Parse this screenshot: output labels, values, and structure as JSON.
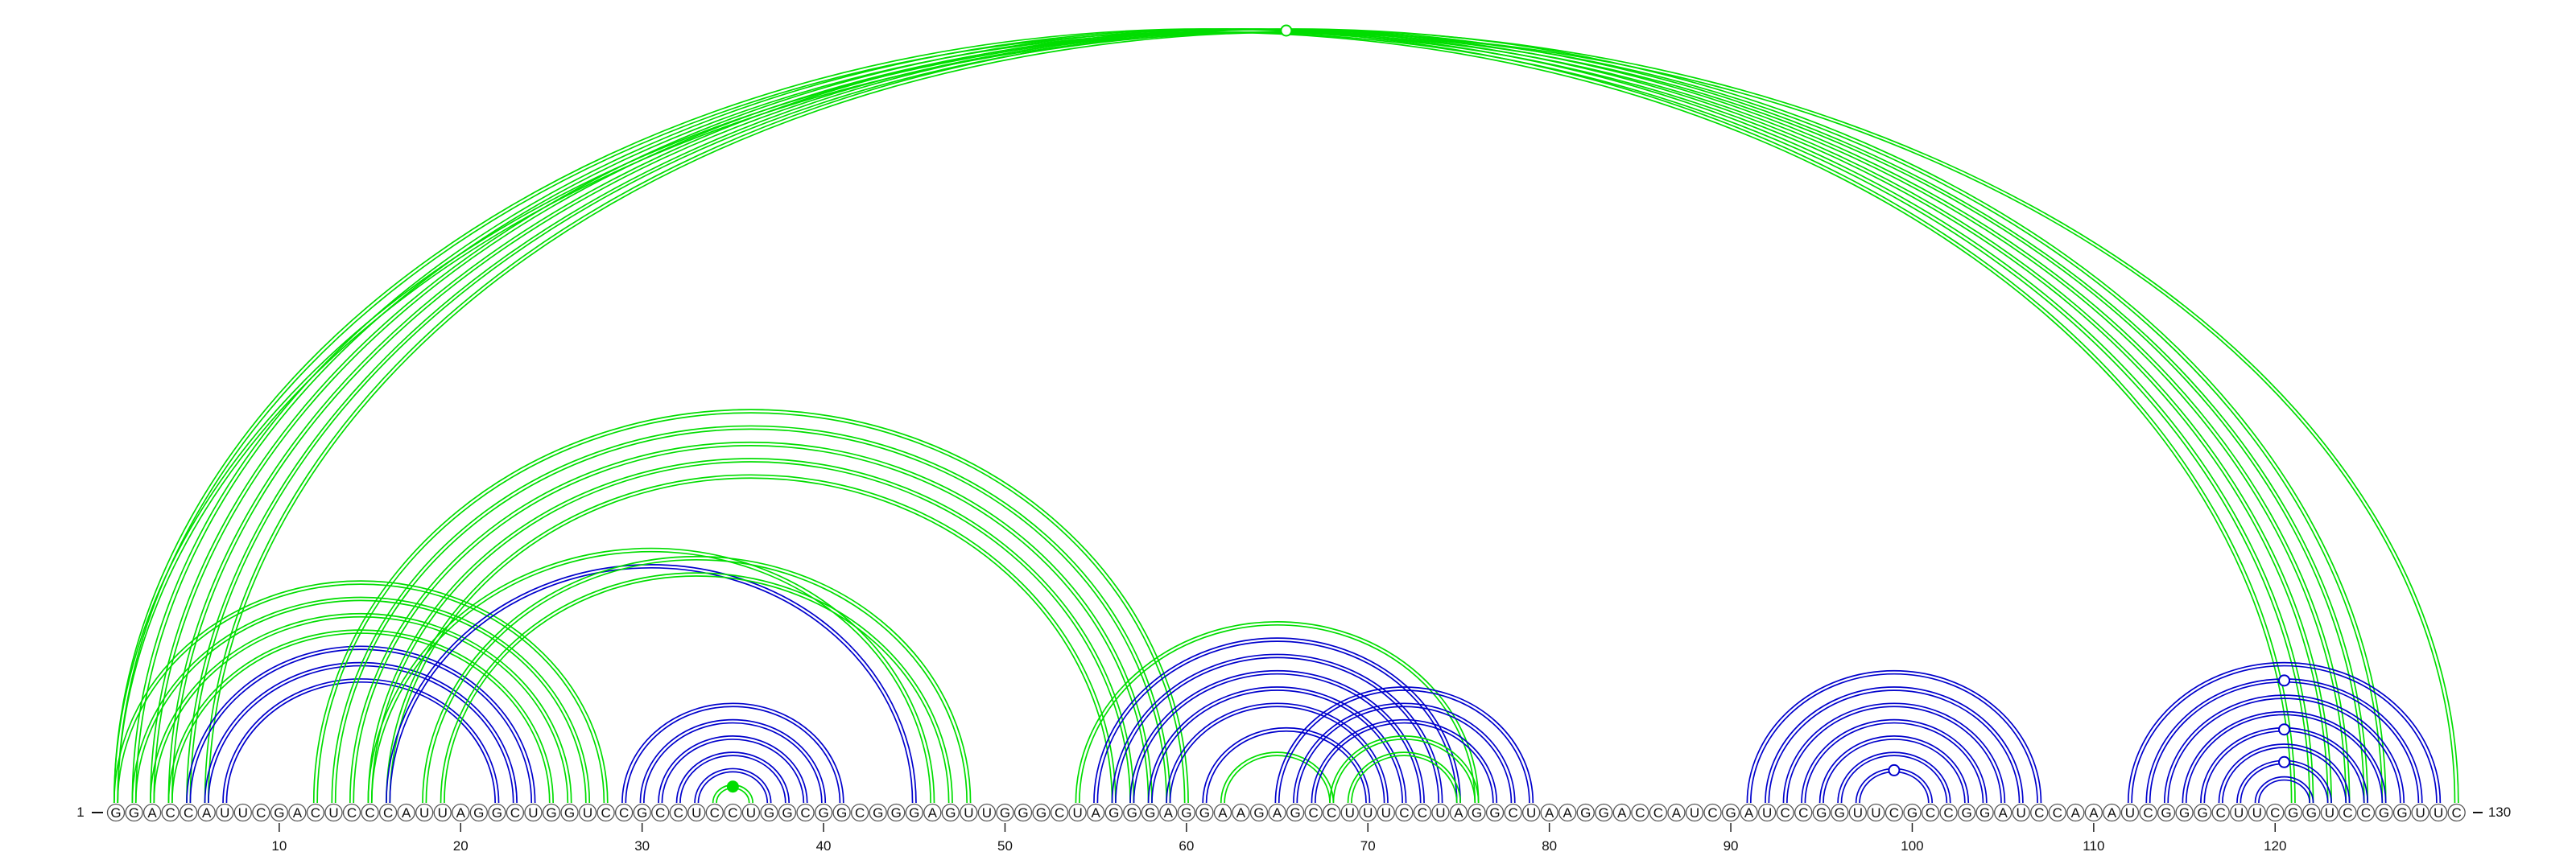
{
  "sequence": "GGACCAUUCGACUCCCAUUAGGCUGGUCCGCCUCCUGGCGGCGGGAGUUGGGCUAGGGAGGAAGAGCCUUUCCUAGGCUAAGGACCAUCGAUCCGGUUCGCCGGAUCCAAAUCGGGCUUCGGUCCGGUUC",
  "start_label": "1",
  "end_label": "130",
  "tick_labels": [
    "10",
    "20",
    "30",
    "40",
    "50",
    "60",
    "70",
    "80",
    "90",
    "100",
    "110",
    "120"
  ],
  "colors": {
    "blue": "#0000cc",
    "green": "#00dd00"
  },
  "arcs": [
    {
      "i": 1,
      "j": 121,
      "color": "green"
    },
    {
      "i": 2,
      "j": 122,
      "color": "green"
    },
    {
      "i": 3,
      "j": 123,
      "color": "green"
    },
    {
      "i": 4,
      "j": 124,
      "color": "green"
    },
    {
      "i": 5,
      "j": 125,
      "color": "green"
    },
    {
      "i": 6,
      "j": 126,
      "color": "green"
    },
    {
      "i": 1,
      "j": 130,
      "color": "green"
    },
    {
      "i": 1,
      "j": 28,
      "color": "green"
    },
    {
      "i": 2,
      "j": 27,
      "color": "green"
    },
    {
      "i": 3,
      "j": 26,
      "color": "green"
    },
    {
      "i": 4,
      "j": 25,
      "color": "green"
    },
    {
      "i": 5,
      "j": 24,
      "color": "blue"
    },
    {
      "i": 6,
      "j": 23,
      "color": "blue"
    },
    {
      "i": 7,
      "j": 22,
      "color": "blue"
    },
    {
      "i": 12,
      "j": 60,
      "color": "green"
    },
    {
      "i": 13,
      "j": 59,
      "color": "green"
    },
    {
      "i": 14,
      "j": 58,
      "color": "green"
    },
    {
      "i": 15,
      "j": 57,
      "color": "green"
    },
    {
      "i": 16,
      "j": 56,
      "color": "green"
    },
    {
      "i": 15,
      "j": 46,
      "color": "green"
    },
    {
      "i": 16,
      "j": 45,
      "color": "blue"
    },
    {
      "i": 18,
      "j": 48,
      "color": "green"
    },
    {
      "i": 19,
      "j": 47,
      "color": "green"
    },
    {
      "i": 29,
      "j": 41,
      "color": "blue"
    },
    {
      "i": 30,
      "j": 40,
      "color": "blue"
    },
    {
      "i": 31,
      "j": 39,
      "color": "blue"
    },
    {
      "i": 32,
      "j": 38,
      "color": "blue"
    },
    {
      "i": 33,
      "j": 37,
      "color": "blue"
    },
    {
      "i": 34,
      "j": 36,
      "color": "green"
    },
    {
      "i": 54,
      "j": 76,
      "color": "green"
    },
    {
      "i": 55,
      "j": 75,
      "color": "blue"
    },
    {
      "i": 56,
      "j": 74,
      "color": "blue"
    },
    {
      "i": 57,
      "j": 73,
      "color": "blue"
    },
    {
      "i": 58,
      "j": 72,
      "color": "blue"
    },
    {
      "i": 59,
      "j": 71,
      "color": "blue"
    },
    {
      "i": 61,
      "j": 70,
      "color": "blue"
    },
    {
      "i": 62,
      "j": 68,
      "color": "green"
    },
    {
      "i": 65,
      "j": 79,
      "color": "blue"
    },
    {
      "i": 66,
      "j": 78,
      "color": "blue"
    },
    {
      "i": 67,
      "j": 77,
      "color": "blue"
    },
    {
      "i": 68,
      "j": 76,
      "color": "green"
    },
    {
      "i": 69,
      "j": 75,
      "color": "green"
    },
    {
      "i": 91,
      "j": 107,
      "color": "blue"
    },
    {
      "i": 92,
      "j": 106,
      "color": "blue"
    },
    {
      "i": 93,
      "j": 105,
      "color": "blue"
    },
    {
      "i": 94,
      "j": 104,
      "color": "blue"
    },
    {
      "i": 95,
      "j": 103,
      "color": "blue"
    },
    {
      "i": 96,
      "j": 102,
      "color": "blue"
    },
    {
      "i": 97,
      "j": 101,
      "color": "blue"
    },
    {
      "i": 112,
      "j": 129,
      "color": "blue"
    },
    {
      "i": 113,
      "j": 128,
      "color": "blue"
    },
    {
      "i": 114,
      "j": 127,
      "color": "blue"
    },
    {
      "i": 115,
      "j": 126,
      "color": "blue"
    },
    {
      "i": 116,
      "j": 125,
      "color": "blue"
    },
    {
      "i": 117,
      "j": 124,
      "color": "blue"
    },
    {
      "i": 118,
      "j": 123,
      "color": "blue"
    },
    {
      "i": 119,
      "j": 122,
      "color": "blue"
    }
  ],
  "markers": [
    {
      "i": 1,
      "j": 130,
      "color": "green",
      "filled": false
    },
    {
      "i": 34,
      "j": 36,
      "color": "green",
      "filled": true
    },
    {
      "i": 97,
      "j": 101,
      "color": "blue",
      "filled": false
    },
    {
      "i": 113,
      "j": 128,
      "color": "blue",
      "filled": false
    },
    {
      "i": 116,
      "j": 125,
      "color": "blue",
      "filled": false
    },
    {
      "i": 118,
      "j": 123,
      "color": "blue",
      "filled": false
    }
  ]
}
